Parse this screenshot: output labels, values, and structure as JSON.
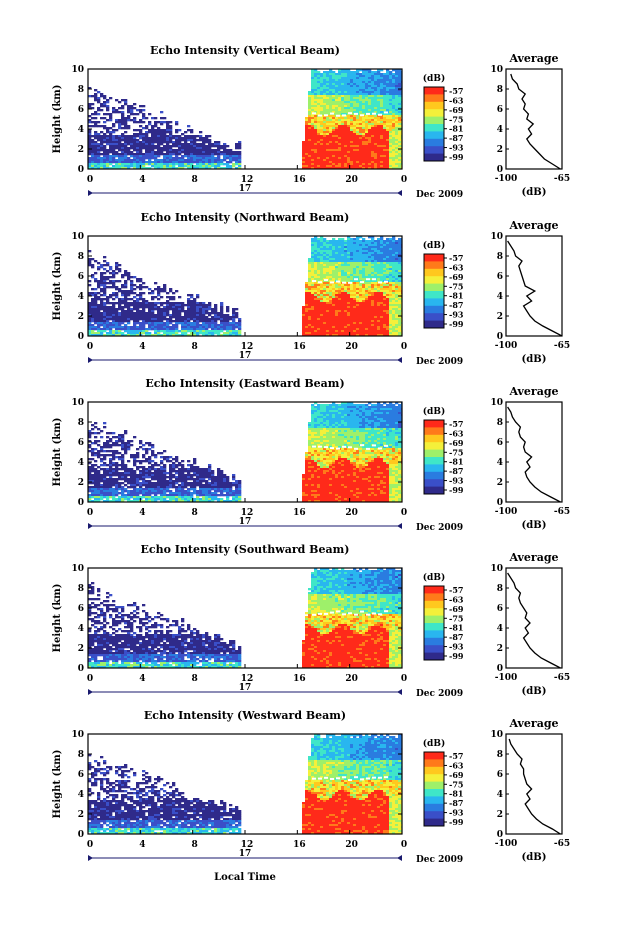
{
  "chart_data": {
    "type": "heatmap",
    "x_axis": {
      "ticks": [
        "0",
        "4",
        "8",
        "12",
        "16",
        "20",
        "0"
      ],
      "date_day": "17",
      "date_label": "Dec 2009",
      "xlabel": "Local Time"
    },
    "y_axis": {
      "ylabel": "Height (km)",
      "ylim": [
        0,
        10
      ],
      "ticks": [
        "0",
        "2",
        "4",
        "6",
        "8",
        "10"
      ]
    },
    "colorbar": {
      "unit": "(dB)",
      "tick_labels": [
        "-57",
        "-63",
        "-69",
        "-75",
        "-81",
        "-87",
        "-93",
        "-99"
      ],
      "colors": [
        "#ff2a1a",
        "#ff7a1a",
        "#ffc81e",
        "#f4f03a",
        "#9ef06a",
        "#3fe6c8",
        "#29b6ef",
        "#2a7ce0",
        "#3a4fc8",
        "#2f2a8a"
      ]
    },
    "profile": {
      "title": "Average",
      "xlabel": "(dB)",
      "xlim": [
        -100,
        -65
      ],
      "xticks": [
        "-100",
        "-65"
      ],
      "yticks": [
        "0",
        "2",
        "4",
        "6",
        "8",
        "10"
      ]
    },
    "panels": [
      {
        "title": "Echo Intensity (Vertical Beam)",
        "profile_heights": [
          0,
          0.5,
          1,
          1.5,
          2,
          2.5,
          3,
          3.5,
          4,
          4.5,
          5,
          5.5,
          6,
          6.5,
          7,
          7.5,
          8,
          8.5,
          9,
          9.5
        ],
        "profile_values": [
          -66,
          -71,
          -76,
          -79,
          -82,
          -85,
          -87,
          -84,
          -86,
          -83,
          -87,
          -86,
          -89,
          -88,
          -90,
          -88,
          -92,
          -93,
          -96,
          -97
        ]
      },
      {
        "title": "Echo Intensity (Northward Beam)",
        "profile_heights": [
          0,
          0.5,
          1,
          1.5,
          2,
          2.5,
          3,
          3.5,
          4,
          4.5,
          5,
          5.5,
          6,
          6.5,
          7,
          7.5,
          8,
          8.5,
          9,
          9.5
        ],
        "profile_values": [
          -65,
          -71,
          -77,
          -82,
          -85,
          -87,
          -89,
          -84,
          -87,
          -82,
          -88,
          -89,
          -90,
          -91,
          -92,
          -90,
          -94,
          -95,
          -97,
          -99
        ]
      },
      {
        "title": "Echo Intensity (Eastward Beam)",
        "profile_heights": [
          0,
          0.5,
          1,
          1.5,
          2,
          2.5,
          3,
          3.5,
          4,
          4.5,
          5,
          5.5,
          6,
          6.5,
          7,
          7.5,
          8,
          8.5,
          9,
          9.5
        ],
        "profile_values": [
          -66,
          -72,
          -78,
          -82,
          -85,
          -87,
          -88,
          -85,
          -87,
          -84,
          -88,
          -89,
          -88,
          -91,
          -92,
          -91,
          -94,
          -96,
          -97,
          -99
        ]
      },
      {
        "title": "Echo Intensity (Southward Beam)",
        "profile_heights": [
          0,
          0.5,
          1,
          1.5,
          2,
          2.5,
          3,
          3.5,
          4,
          4.5,
          5,
          5.5,
          6,
          6.5,
          7,
          7.5,
          8,
          8.5,
          9,
          9.5
        ],
        "profile_values": [
          -66,
          -72,
          -78,
          -82,
          -85,
          -87,
          -89,
          -86,
          -88,
          -85,
          -88,
          -87,
          -89,
          -91,
          -92,
          -91,
          -94,
          -95,
          -97,
          -99
        ]
      },
      {
        "title": "Echo Intensity (Westward Beam)",
        "profile_heights": [
          0,
          0.5,
          1,
          1.5,
          2,
          2.5,
          3,
          3.5,
          4,
          4.5,
          5,
          5.5,
          6,
          6.5,
          7,
          7.5,
          8,
          8.5,
          9,
          9.5
        ],
        "profile_values": [
          -66,
          -71,
          -77,
          -81,
          -84,
          -86,
          -88,
          -85,
          -87,
          -84,
          -87,
          -88,
          -89,
          -89,
          -91,
          -90,
          -93,
          -95,
          -97,
          -98
        ]
      }
    ]
  }
}
